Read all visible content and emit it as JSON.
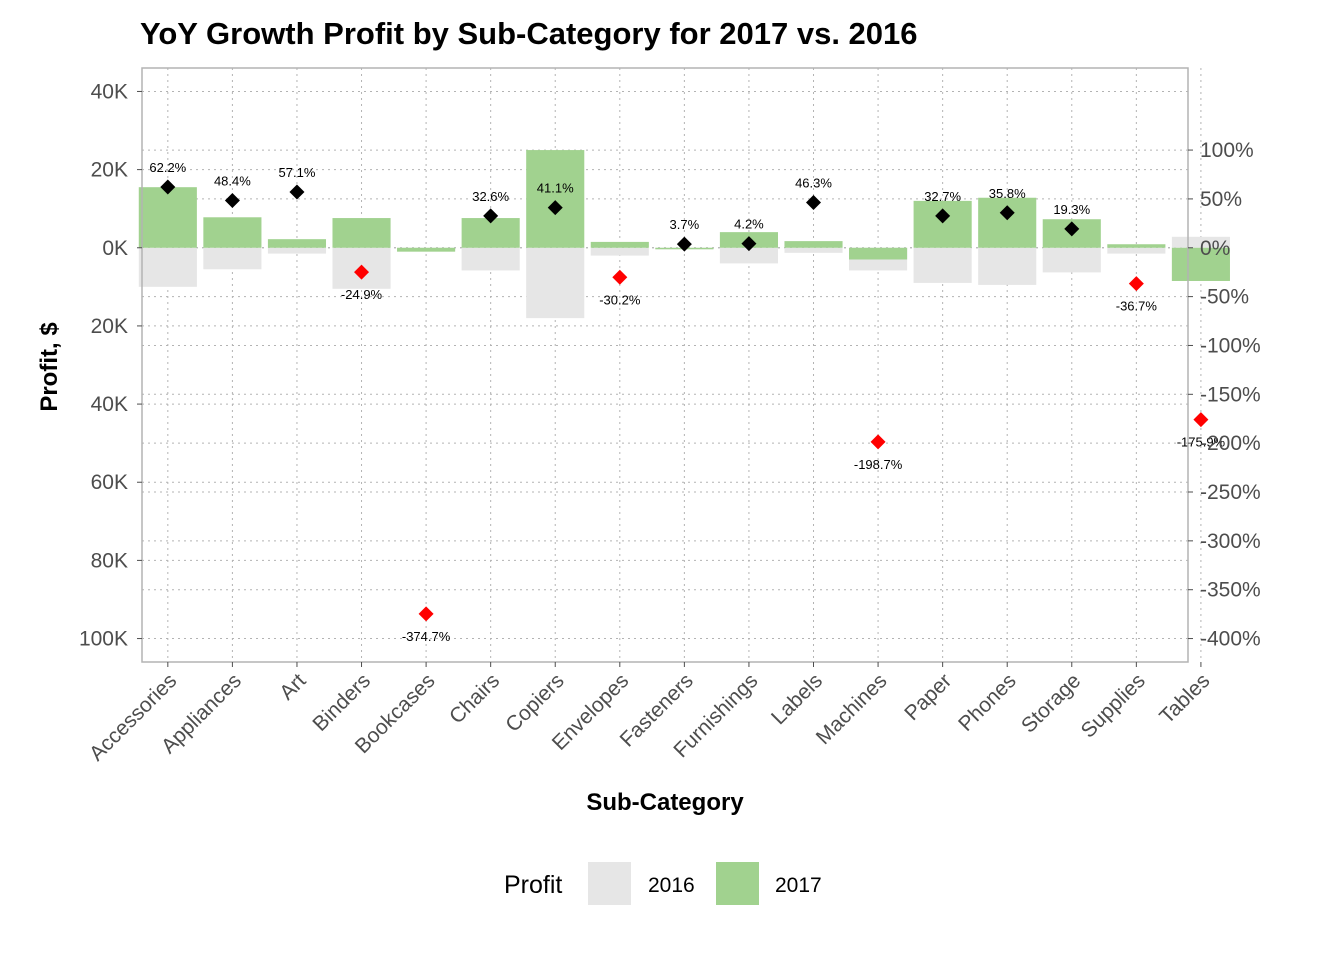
{
  "chart_data": {
    "type": "bar",
    "title": "YoY Growth Profit by Sub-Category for 2017 vs. 2016",
    "xlabel": "Sub-Category",
    "ylabel": "Profit, $",
    "categories": [
      "Accessories",
      "Appliances",
      "Art",
      "Binders",
      "Bookcases",
      "Chairs",
      "Copiers",
      "Envelopes",
      "Fasteners",
      "Furnishings",
      "Labels",
      "Machines",
      "Paper",
      "Phones",
      "Storage",
      "Supplies",
      "Tables"
    ],
    "series": [
      {
        "name": "2016",
        "color": "#e6e6e6",
        "values": [
          -10000,
          -5500,
          -1500,
          -10500,
          -700,
          -5800,
          -18000,
          -2000,
          -400,
          -4000,
          -1300,
          -5800,
          -9000,
          -9500,
          -6300,
          -1500,
          2800
        ]
      },
      {
        "name": "2017",
        "color": "#a1d28f",
        "values": [
          15500,
          7800,
          2200,
          7600,
          -1000,
          7600,
          25000,
          1500,
          -200,
          4000,
          1700,
          -3000,
          12000,
          12800,
          7300,
          900,
          -8500
        ]
      }
    ],
    "growth_pct": {
      "values": [
        62.2,
        48.4,
        57.1,
        -24.9,
        -374.7,
        32.6,
        41.1,
        -30.2,
        3.7,
        4.2,
        46.3,
        -198.7,
        32.7,
        35.8,
        19.3,
        -36.7,
        -175.9
      ],
      "labels": [
        "62.2%",
        "48.4%",
        "57.1%",
        "-24.9%",
        "-374.7%",
        "32.6%",
        "41.1%",
        "-30.2%",
        "3.7%",
        "4.2%",
        "46.3%",
        "-198.7%",
        "32.7%",
        "35.8%",
        "19.3%",
        "-36.7%",
        "-175.9%"
      ],
      "positive_color": "#000000",
      "negative_color": "#ff0000"
    },
    "y_left": {
      "ylim": [
        -106000,
        46000
      ],
      "ticks": [
        40000,
        20000,
        0,
        -20000,
        -40000,
        -60000,
        -80000,
        -100000
      ],
      "tick_labels": [
        "40K",
        "20K",
        "0K",
        "20K",
        "40K",
        "60K",
        "80K",
        "100K"
      ]
    },
    "y_right": {
      "ticks": [
        100,
        50,
        0,
        -50,
        -100,
        -150,
        -200,
        -250,
        -300,
        -350,
        -400
      ],
      "tick_labels": [
        "100%",
        "50%",
        "0%",
        "-50%",
        "-100%",
        "-150%",
        "-200%",
        "-250%",
        "-300%",
        "-350%",
        "-400%"
      ]
    },
    "grid": true,
    "legend": {
      "title": "Profit",
      "position": "bottom",
      "items": [
        "2016",
        "2017"
      ]
    }
  }
}
